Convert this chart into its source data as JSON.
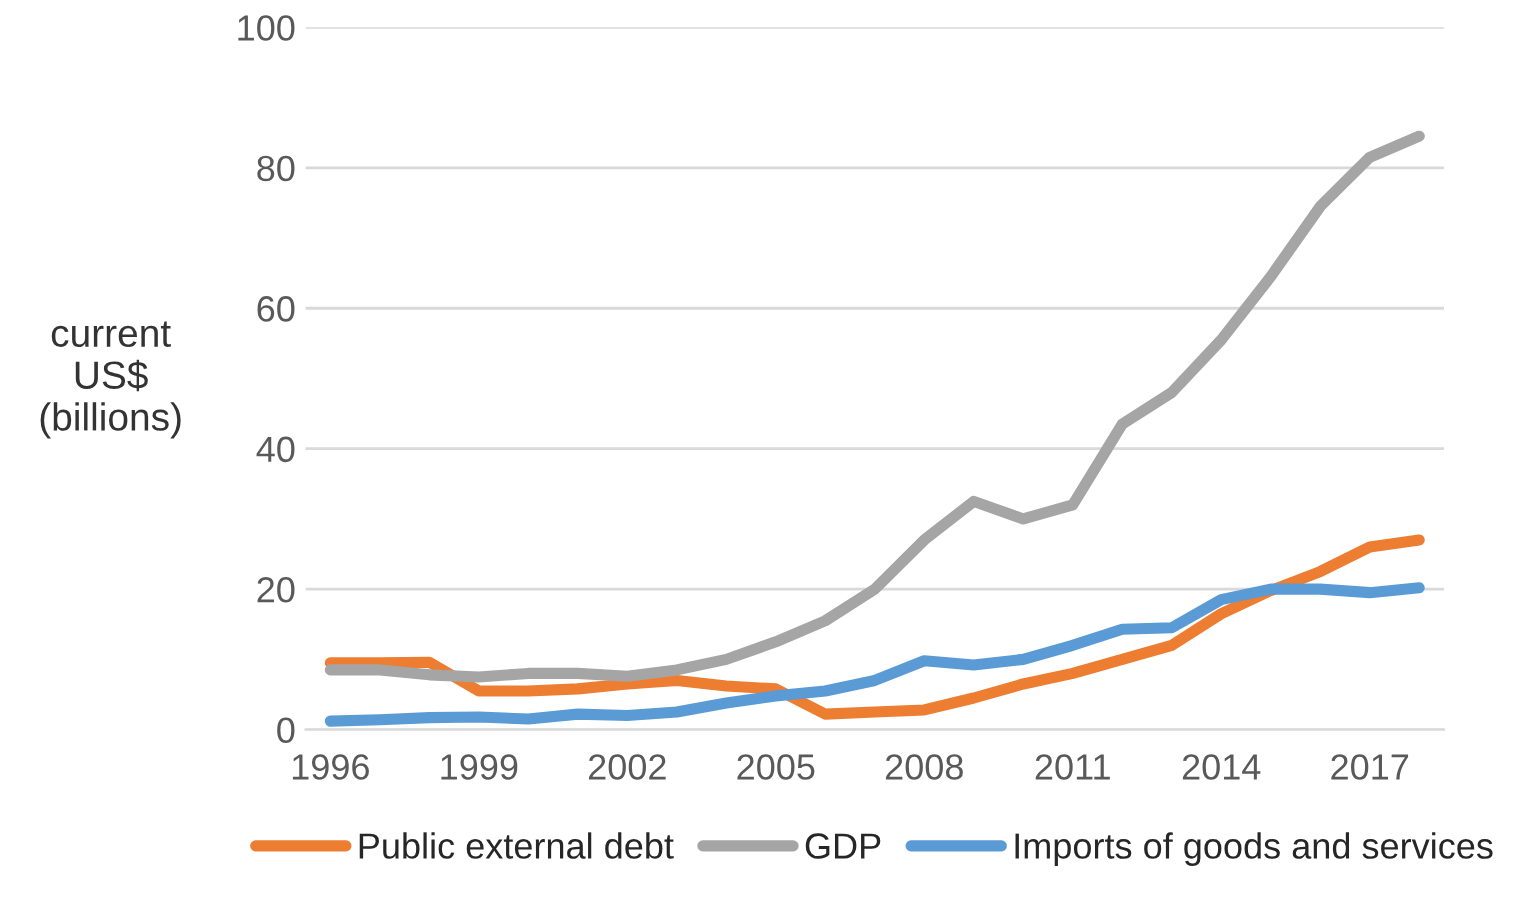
{
  "chart_data": {
    "type": "line",
    "ylabel": "current\nUS$\n(billions)",
    "categories": [
      "1996",
      null,
      null,
      "1999",
      null,
      null,
      "2002",
      null,
      null,
      "2005",
      null,
      null,
      "2008",
      null,
      null,
      "2011",
      null,
      null,
      "2014",
      null,
      null,
      "2017",
      null
    ],
    "series": [
      {
        "name": "Public external debt",
        "color": "#ed7d31",
        "values": [
          9.5,
          9.5,
          9.6,
          5.5,
          5.5,
          5.8,
          6.5,
          7.0,
          6.2,
          5.8,
          2.2,
          2.5,
          2.8,
          4.5,
          6.5,
          8.0,
          10.0,
          12.0,
          16.5,
          19.8,
          22.5,
          26.0,
          27.0
        ]
      },
      {
        "name": "GDP",
        "color": "#a5a5a5",
        "values": [
          8.5,
          8.5,
          7.8,
          7.5,
          8.0,
          8.0,
          7.6,
          8.5,
          10.0,
          12.5,
          15.5,
          20.0,
          27.0,
          32.5,
          30.0,
          32.0,
          43.5,
          48.0,
          55.5,
          64.5,
          74.5,
          81.5,
          84.5
        ]
      },
      {
        "name": "Imports of goods and services",
        "color": "#5b9bd5",
        "values": [
          1.2,
          1.4,
          1.7,
          1.8,
          1.5,
          2.2,
          2.0,
          2.5,
          3.8,
          4.8,
          5.5,
          7.0,
          9.8,
          9.2,
          10.0,
          12.0,
          14.3,
          14.5,
          18.5,
          20.0,
          20.0,
          19.5,
          20.2
        ]
      }
    ],
    "ylim": [
      0,
      100
    ],
    "yticks": [
      0,
      20,
      40,
      60,
      80,
      100
    ],
    "grid": "y",
    "legend": "bottom",
    "line_style": "solid",
    "marker": "none"
  }
}
